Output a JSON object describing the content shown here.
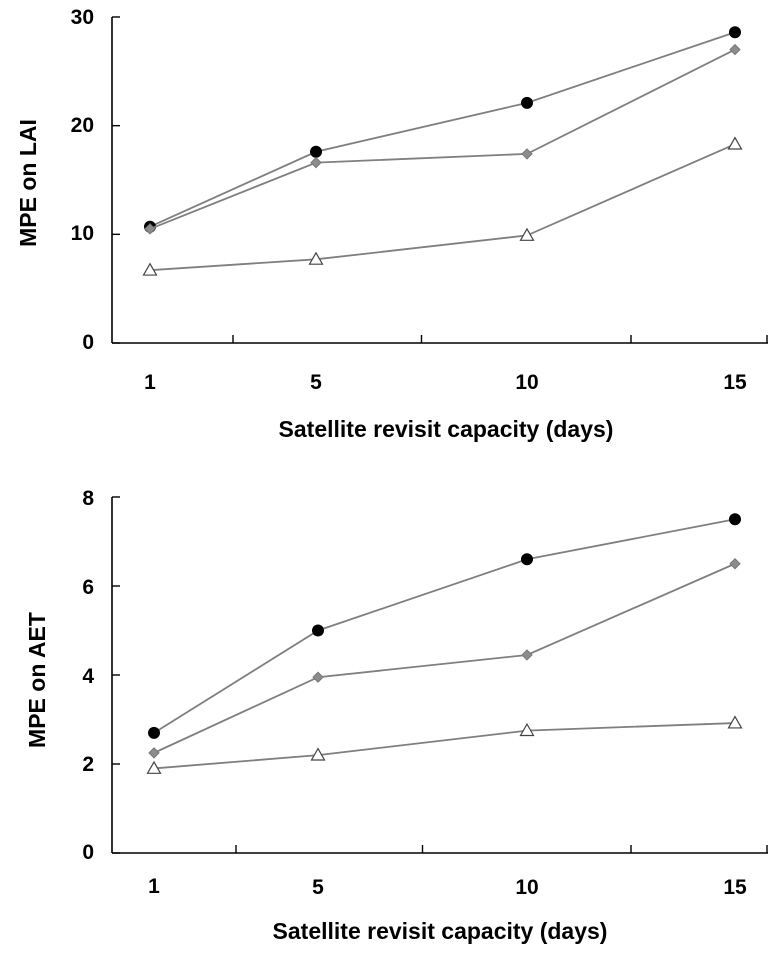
{
  "chart_data": [
    {
      "type": "line",
      "title": "",
      "xlabel": "Satellite revisit capacity (days)",
      "ylabel": "MPE on LAI",
      "categories": [
        "1",
        "5",
        "10",
        "15"
      ],
      "yticks": [
        "0",
        "10",
        "20",
        "30"
      ],
      "ylim": [
        0,
        30
      ],
      "grid": false,
      "legend": "none",
      "series": [
        {
          "marker": "filled-circle",
          "color": "#000000",
          "values": [
            10.7,
            17.6,
            22.1,
            28.6
          ]
        },
        {
          "marker": "diamond",
          "color": "#8c8c8c",
          "values": [
            10.5,
            16.6,
            17.4,
            27.0
          ]
        },
        {
          "marker": "open-triangle",
          "color": "#ffffff",
          "values": [
            6.7,
            7.7,
            9.9,
            18.3
          ]
        }
      ]
    },
    {
      "type": "line",
      "title": "",
      "xlabel": "Satellite revisit capacity (days)",
      "ylabel": "MPE on AET",
      "categories": [
        "1",
        "5",
        "10",
        "15"
      ],
      "yticks": [
        "0",
        "2",
        "4",
        "6",
        "8"
      ],
      "ylim": [
        0,
        8
      ],
      "grid": false,
      "legend": "none",
      "series": [
        {
          "marker": "filled-circle",
          "color": "#000000",
          "values": [
            2.7,
            5.0,
            6.6,
            7.5
          ]
        },
        {
          "marker": "diamond",
          "color": "#8c8c8c",
          "values": [
            2.25,
            3.95,
            4.45,
            6.5
          ]
        },
        {
          "marker": "open-triangle",
          "color": "#ffffff",
          "values": [
            1.9,
            2.2,
            2.75,
            2.92
          ]
        }
      ]
    }
  ]
}
